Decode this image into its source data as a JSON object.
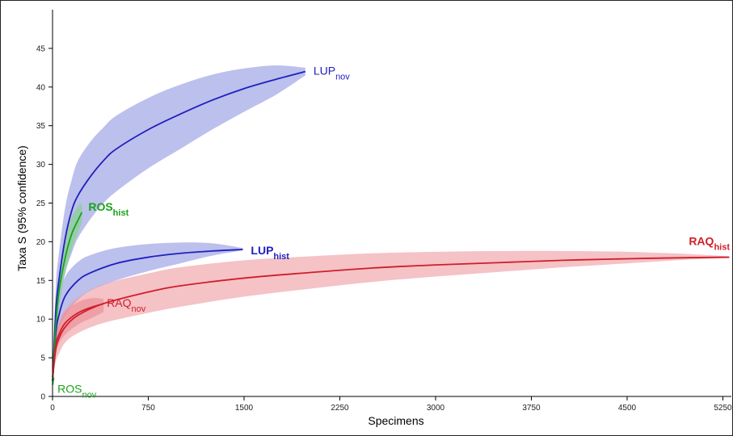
{
  "chart_data": {
    "type": "line",
    "title": "",
    "xlabel": "Specimens",
    "ylabel": "Taxa S (95% confidence)",
    "xlim": [
      0,
      5300
    ],
    "ylim": [
      0,
      50
    ],
    "xticks": [
      0,
      750,
      1500,
      2250,
      3000,
      3750,
      4500,
      5250
    ],
    "yticks": [
      0,
      5,
      10,
      15,
      20,
      25,
      30,
      35,
      40,
      45
    ],
    "grid": false,
    "series": [
      {
        "name": "LUPnov",
        "label_main": "LUP",
        "label_sub": "nov",
        "bold": false,
        "color": "#1f1fbf",
        "band_color": "#8f96e0",
        "x": [
          1,
          25,
          50,
          100,
          150,
          200,
          300,
          400,
          500,
          750,
          1000,
          1250,
          1500,
          1750,
          1980
        ],
        "y": [
          2,
          11,
          15,
          20.5,
          24,
          26,
          28.5,
          30.5,
          32,
          34.5,
          36.5,
          38.3,
          39.8,
          41,
          42
        ],
        "lower": [
          2,
          8,
          12,
          16,
          18.5,
          20.5,
          23,
          25,
          26.5,
          29.5,
          32,
          34.5,
          36.8,
          39,
          41.5
        ],
        "upper": [
          2,
          14,
          18.5,
          24.5,
          28,
          30.5,
          33,
          34.8,
          36.3,
          38.6,
          40.3,
          41.6,
          42.4,
          42.8,
          42.5
        ]
      },
      {
        "name": "LUPhist",
        "label_main": "LUP",
        "label_sub": "hist",
        "bold": true,
        "color": "#1f1fbf",
        "band_color": "#8f96e0",
        "x": [
          1,
          25,
          50,
          100,
          200,
          300,
          500,
          750,
          1000,
          1250,
          1490
        ],
        "y": [
          2,
          8,
          10.5,
          13,
          15,
          16,
          17.2,
          18,
          18.5,
          18.8,
          19
        ],
        "lower": [
          2,
          6,
          8.5,
          10.5,
          12.5,
          13.7,
          15,
          16.2,
          17.2,
          18.2,
          18.9
        ],
        "upper": [
          2,
          10,
          12.5,
          15.5,
          17.4,
          18.3,
          19.2,
          19.7,
          19.9,
          19.8,
          19.2
        ]
      },
      {
        "name": "ROShist",
        "label_main": "ROS",
        "label_sub": "hist",
        "bold": true,
        "color": "#19a319",
        "band_color": "#7fd37f",
        "x": [
          1,
          25,
          50,
          100,
          150,
          200,
          230
        ],
        "y": [
          2,
          9,
          13.5,
          18,
          21,
          22.8,
          23.8
        ],
        "lower": [
          2,
          7.5,
          11.5,
          16,
          19,
          21.2,
          22.6
        ],
        "upper": [
          2,
          10.5,
          15.5,
          20.5,
          23.2,
          24.6,
          25
        ]
      },
      {
        "name": "ROSnov",
        "label_main": "ROS",
        "label_sub": "nov",
        "bold": false,
        "color": "#19a319",
        "band_color": "#7fd37f",
        "x": [
          1,
          5,
          10
        ],
        "y": [
          1.5,
          2,
          2.4
        ],
        "lower": [
          1.5,
          1.8,
          2.1
        ],
        "upper": [
          1.5,
          2.3,
          2.8
        ]
      },
      {
        "name": "RAQnov",
        "label_main": "RAQ",
        "label_sub": "nov",
        "bold": false,
        "color": "#d01e2a",
        "band_color": "#e8707a",
        "x": [
          1,
          25,
          50,
          100,
          200,
          300,
          400
        ],
        "y": [
          2.5,
          6.5,
          8,
          9.5,
          10.8,
          11.5,
          12
        ],
        "lower": [
          2.5,
          5.5,
          6.8,
          8,
          9.3,
          10.1,
          10.9
        ],
        "upper": [
          2.5,
          7.8,
          9.3,
          11,
          12.2,
          12.7,
          12.6
        ]
      },
      {
        "name": "RAQhist",
        "label_main": "RAQ",
        "label_sub": "hist",
        "bold": true,
        "color": "#d01e2a",
        "band_color": "#ef9aa0",
        "x": [
          1,
          25,
          50,
          100,
          200,
          400,
          750,
          1000,
          1500,
          2000,
          2500,
          3000,
          3500,
          4000,
          4500,
          5000,
          5300
        ],
        "y": [
          2.5,
          6,
          7.5,
          9,
          10.5,
          12,
          13.5,
          14.3,
          15.3,
          16,
          16.6,
          17,
          17.3,
          17.6,
          17.8,
          17.95,
          18
        ],
        "lower": [
          2.5,
          4.5,
          5.5,
          7,
          8.2,
          9.5,
          10.8,
          11.6,
          12.9,
          13.9,
          14.8,
          15.5,
          16.1,
          16.7,
          17.2,
          17.7,
          17.9
        ],
        "upper": [
          2.5,
          7.5,
          9.5,
          11.2,
          12.8,
          14.5,
          15.9,
          16.7,
          17.6,
          18.1,
          18.5,
          18.7,
          18.8,
          18.8,
          18.7,
          18.4,
          18.1
        ]
      }
    ]
  }
}
